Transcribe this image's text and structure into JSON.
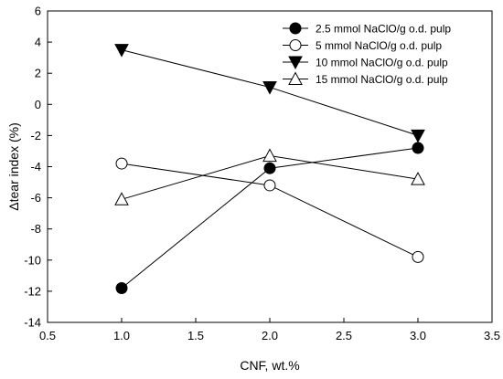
{
  "chart_data": {
    "type": "line",
    "title": "",
    "xlabel": "CNF, wt.%",
    "ylabel": "Δtear index (%)",
    "xlim": [
      0.5,
      3.5
    ],
    "ylim": [
      -14,
      6
    ],
    "xticks": [
      0.5,
      1.0,
      1.5,
      2.0,
      2.5,
      3.0,
      3.5
    ],
    "xtick_labels": [
      "0.5",
      "1.0",
      "1.5",
      "2.0",
      "2.5",
      "3.0",
      "3.5"
    ],
    "yticks": [
      -14,
      -12,
      -10,
      -8,
      -6,
      -4,
      -2,
      0,
      2,
      4,
      6
    ],
    "ytick_labels": [
      "-14",
      "-12",
      "-10",
      "-8",
      "-6",
      "-4",
      "-2",
      "0",
      "2",
      "4",
      "6"
    ],
    "grid": false,
    "legend_position": "top-right",
    "x": [
      1.0,
      2.0,
      3.0
    ],
    "series": [
      {
        "name": "2.5 mmol NaClO/g o.d. pulp",
        "marker": "circle-filled",
        "values": [
          -11.8,
          -4.1,
          -2.8
        ]
      },
      {
        "name": "5 mmol NaClO/g o.d. pulp",
        "marker": "circle-open",
        "values": [
          -3.8,
          -5.2,
          -9.8
        ]
      },
      {
        "name": "10 mmol NaClO/g o.d. pulp",
        "marker": "triangle-down-filled",
        "values": [
          3.5,
          1.1,
          -2.0
        ]
      },
      {
        "name": "15 mmol NaClO/g o.d. pulp",
        "marker": "triangle-up-open",
        "values": [
          -6.1,
          -3.3,
          -4.8
        ]
      }
    ]
  }
}
